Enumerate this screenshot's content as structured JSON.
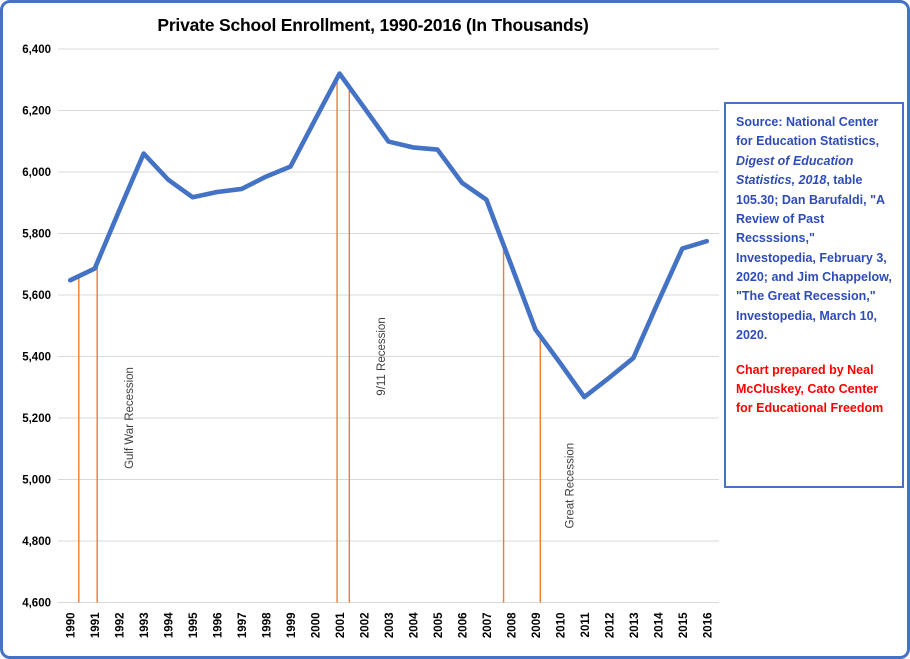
{
  "title": "Private School Enrollment, 1990-2016 (In Thousands)",
  "chart_data": {
    "type": "line",
    "title": "Private School Enrollment, 1990-2016 (In Thousands)",
    "xlabel": "",
    "ylabel": "",
    "categories": [
      1990,
      1991,
      1992,
      1993,
      1994,
      1995,
      1996,
      1997,
      1998,
      1999,
      2000,
      2001,
      2002,
      2003,
      2004,
      2005,
      2006,
      2007,
      2008,
      2009,
      2010,
      2011,
      2012,
      2013,
      2014,
      2015,
      2016
    ],
    "series": [
      {
        "name": "Private school enrollment (thousands)",
        "color": "#4472C4",
        "values": [
          5648,
          5686,
          5875,
          6060,
          5975,
          5918,
          5935,
          5945,
          5985,
          6018,
          6170,
          6320,
          6210,
          6099,
          6080,
          6073,
          5965,
          5910,
          5700,
          5488,
          5380,
          5268,
          5330,
          5395,
          5575,
          5751,
          5775
        ]
      }
    ],
    "ylim": [
      4600,
      6400
    ],
    "y_tick_step": 200,
    "y_tick_labels": [
      "6,400",
      "6,200",
      "6,000",
      "5,800",
      "5,600",
      "5,400",
      "5,200",
      "5,000",
      "4,800",
      "4,600"
    ],
    "grid": "horizontal-only",
    "gridline_color": "#D9D9D9",
    "legend": "none",
    "axis_text_color": "#000000",
    "recession_markers": {
      "color": "#ED7D31",
      "lines": [
        {
          "group": "gulf-war-recession",
          "year": 1990.35
        },
        {
          "group": "gulf-war-recession",
          "year": 1991.1
        },
        {
          "group": "9-11-recession",
          "year": 2000.9
        },
        {
          "group": "9-11-recession",
          "year": 2001.4
        },
        {
          "group": "great-recession",
          "year": 2007.7
        },
        {
          "group": "great-recession",
          "year": 2009.2
        }
      ]
    },
    "annotations": [
      {
        "text": "Gulf War Recession",
        "year": 1992.4,
        "value": 5200
      },
      {
        "text": "9/11 Recession",
        "year": 2002.7,
        "value": 5400
      },
      {
        "text": "Great Recession",
        "year": 2010.4,
        "value": 4980
      }
    ]
  },
  "source_box": {
    "blue_part1": "Source: National Center for Education Statistics, ",
    "blue_italic": "Digest of Education Statistics, 2018",
    "blue_part2": ",  table 105.30; Dan Barufaldi, \"A Review of Past Recsssions,\" Investopedia, February 3, 2020;  and Jim Chappelow, \"The Great Recession,\" Investopedia, March 10, 2020.",
    "red_text": "Chart prepared by Neal McCluskey, Cato Center for Educational Freedom",
    "blue_color": "#2E4CB8",
    "red_color": "#FF0000",
    "border_color": "#4472C4"
  },
  "colors": {
    "frame_border": "#4472C4",
    "line_series": "#4472C4",
    "recession_line": "#ED7D31",
    "gridline": "#D9D9D9",
    "annotation_text": "#404040"
  }
}
